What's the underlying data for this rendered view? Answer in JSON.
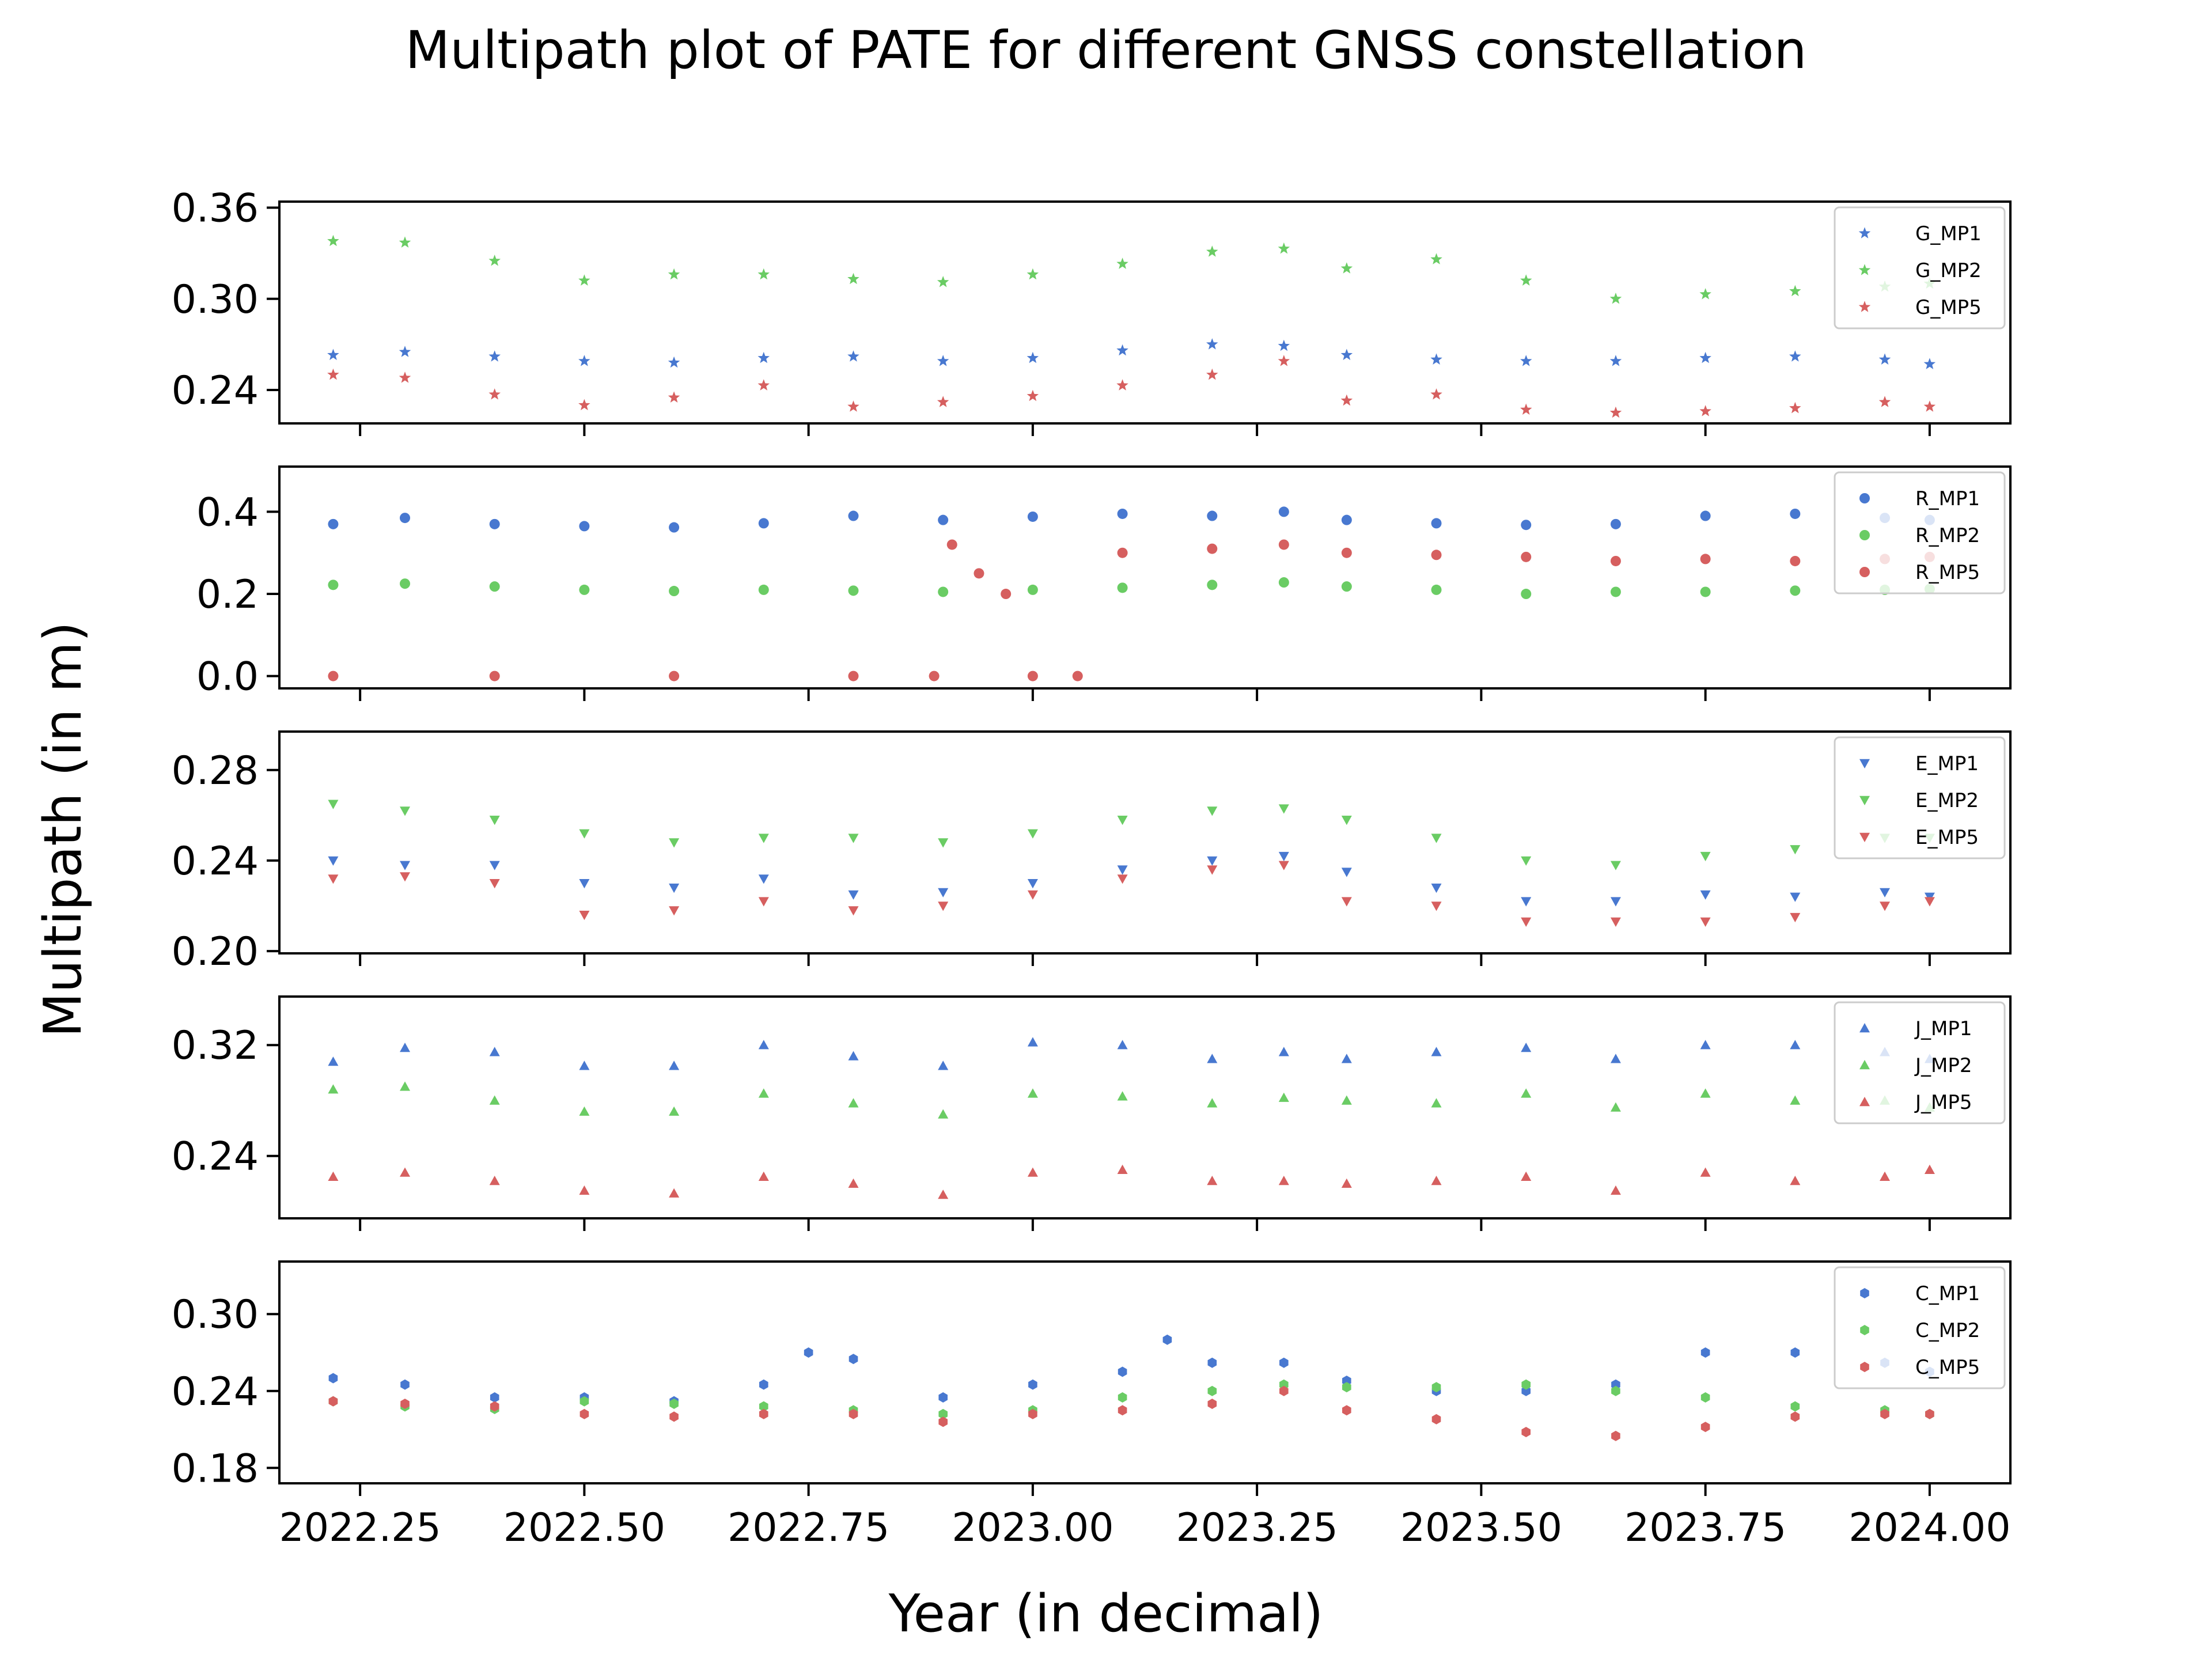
{
  "chart_data": {
    "type": "scatter",
    "title": "Multipath plot of PATE for different GNSS constellation",
    "xlabel": "Year (in decimal)",
    "ylabel": "Multipath (in m)",
    "xlim": [
      2022.16,
      2024.09
    ],
    "x_ticks": [
      2022.25,
      2022.5,
      2022.75,
      2023.0,
      2023.25,
      2023.5,
      2023.75,
      2024.0
    ],
    "x_tick_labels": [
      "2022.25",
      "2022.50",
      "2022.75",
      "2023.00",
      "2023.25",
      "2023.50",
      "2023.75",
      "2024.00"
    ],
    "legend_position": "top-right",
    "series_colors": [
      "#4878d0",
      "#6acc64",
      "#d65f5f"
    ],
    "panels": [
      {
        "constellation": "G",
        "marker": "star",
        "ylim": [
          0.218,
          0.364
        ],
        "y_ticks": [
          0.24,
          0.3,
          0.36
        ],
        "y_tick_labels": [
          "0.24",
          "0.30",
          "0.36"
        ],
        "series": [
          {
            "name": "G_MP1",
            "color": "#4878d0",
            "x": [
              2022.22,
              2022.3,
              2022.4,
              2022.5,
              2022.6,
              2022.7,
              2022.8,
              2022.9,
              2023.0,
              2023.1,
              2023.2,
              2023.28,
              2023.35,
              2023.45,
              2023.55,
              2023.65,
              2023.75,
              2023.85,
              2023.95,
              2024.0
            ],
            "y": [
              0.263,
              0.265,
              0.262,
              0.259,
              0.258,
              0.261,
              0.262,
              0.259,
              0.261,
              0.266,
              0.27,
              0.269,
              0.263,
              0.26,
              0.259,
              0.259,
              0.261,
              0.262,
              0.26,
              0.257
            ]
          },
          {
            "name": "G_MP2",
            "color": "#6acc64",
            "x": [
              2022.22,
              2022.3,
              2022.4,
              2022.5,
              2022.6,
              2022.7,
              2022.8,
              2022.9,
              2023.0,
              2023.1,
              2023.2,
              2023.28,
              2023.35,
              2023.45,
              2023.55,
              2023.65,
              2023.75,
              2023.85,
              2023.95,
              2024.0
            ],
            "y": [
              0.338,
              0.337,
              0.325,
              0.312,
              0.316,
              0.316,
              0.313,
              0.311,
              0.316,
              0.323,
              0.331,
              0.333,
              0.32,
              0.326,
              0.312,
              0.3,
              0.303,
              0.305,
              0.308,
              0.31
            ]
          },
          {
            "name": "G_MP5",
            "color": "#d65f5f",
            "x": [
              2022.22,
              2022.3,
              2022.4,
              2022.5,
              2022.6,
              2022.7,
              2022.8,
              2022.9,
              2023.0,
              2023.1,
              2023.2,
              2023.28,
              2023.35,
              2023.45,
              2023.55,
              2023.65,
              2023.75,
              2023.85,
              2023.95,
              2024.0
            ],
            "y": [
              0.25,
              0.248,
              0.237,
              0.23,
              0.235,
              0.243,
              0.229,
              0.232,
              0.236,
              0.243,
              0.25,
              0.259,
              0.233,
              0.237,
              0.227,
              0.225,
              0.226,
              0.228,
              0.232,
              0.229
            ]
          }
        ]
      },
      {
        "constellation": "R",
        "marker": "circle",
        "ylim": [
          -0.03,
          0.51
        ],
        "y_ticks": [
          0.0,
          0.2,
          0.4
        ],
        "y_tick_labels": [
          "0.0",
          "0.2",
          "0.4"
        ],
        "series": [
          {
            "name": "R_MP1",
            "color": "#4878d0",
            "x": [
              2022.22,
              2022.3,
              2022.4,
              2022.5,
              2022.6,
              2022.7,
              2022.8,
              2022.9,
              2023.0,
              2023.1,
              2023.2,
              2023.28,
              2023.35,
              2023.45,
              2023.55,
              2023.65,
              2023.75,
              2023.85,
              2023.95,
              2024.0
            ],
            "y": [
              0.37,
              0.385,
              0.37,
              0.365,
              0.362,
              0.372,
              0.39,
              0.38,
              0.388,
              0.395,
              0.39,
              0.4,
              0.38,
              0.372,
              0.368,
              0.37,
              0.39,
              0.395,
              0.385,
              0.38
            ]
          },
          {
            "name": "R_MP2",
            "color": "#6acc64",
            "x": [
              2022.22,
              2022.3,
              2022.4,
              2022.5,
              2022.6,
              2022.7,
              2022.8,
              2022.9,
              2023.0,
              2023.1,
              2023.2,
              2023.28,
              2023.35,
              2023.45,
              2023.55,
              2023.65,
              2023.75,
              2023.85,
              2023.95,
              2024.0
            ],
            "y": [
              0.222,
              0.225,
              0.218,
              0.21,
              0.207,
              0.21,
              0.208,
              0.205,
              0.21,
              0.215,
              0.222,
              0.228,
              0.218,
              0.21,
              0.2,
              0.205,
              0.205,
              0.208,
              0.21,
              0.212
            ]
          },
          {
            "name": "R_MP5",
            "color": "#d65f5f",
            "x": [
              2022.22,
              2022.4,
              2022.6,
              2022.8,
              2022.89,
              2022.91,
              2022.94,
              2022.97,
              2023.0,
              2023.05,
              2023.1,
              2023.2,
              2023.28,
              2023.35,
              2023.45,
              2023.55,
              2023.65,
              2023.75,
              2023.85,
              2023.95,
              2024.0
            ],
            "y": [
              0.0,
              0.0,
              0.0,
              0.0,
              0.0,
              0.32,
              0.25,
              0.2,
              0.0,
              0.0,
              0.3,
              0.31,
              0.32,
              0.3,
              0.295,
              0.29,
              0.28,
              0.285,
              0.28,
              0.285,
              0.29
            ]
          }
        ]
      },
      {
        "constellation": "E",
        "marker": "triangle-down",
        "ylim": [
          0.199,
          0.297
        ],
        "y_ticks": [
          0.2,
          0.24,
          0.28
        ],
        "y_tick_labels": [
          "0.20",
          "0.24",
          "0.28"
        ],
        "series": [
          {
            "name": "E_MP1",
            "color": "#4878d0",
            "x": [
              2022.22,
              2022.3,
              2022.4,
              2022.5,
              2022.6,
              2022.7,
              2022.8,
              2022.9,
              2023.0,
              2023.1,
              2023.2,
              2023.28,
              2023.35,
              2023.45,
              2023.55,
              2023.65,
              2023.75,
              2023.85,
              2023.95,
              2024.0
            ],
            "y": [
              0.24,
              0.238,
              0.238,
              0.23,
              0.228,
              0.232,
              0.225,
              0.226,
              0.23,
              0.236,
              0.24,
              0.242,
              0.235,
              0.228,
              0.222,
              0.222,
              0.225,
              0.224,
              0.226,
              0.224
            ]
          },
          {
            "name": "E_MP2",
            "color": "#6acc64",
            "x": [
              2022.22,
              2022.3,
              2022.4,
              2022.5,
              2022.6,
              2022.7,
              2022.8,
              2022.9,
              2023.0,
              2023.1,
              2023.2,
              2023.28,
              2023.35,
              2023.45,
              2023.55,
              2023.65,
              2023.75,
              2023.85,
              2023.95,
              2024.0
            ],
            "y": [
              0.265,
              0.262,
              0.258,
              0.252,
              0.248,
              0.25,
              0.25,
              0.248,
              0.252,
              0.258,
              0.262,
              0.263,
              0.258,
              0.25,
              0.24,
              0.238,
              0.242,
              0.245,
              0.25,
              0.25
            ]
          },
          {
            "name": "E_MP5",
            "color": "#d65f5f",
            "x": [
              2022.22,
              2022.3,
              2022.4,
              2022.5,
              2022.6,
              2022.7,
              2022.8,
              2022.9,
              2023.0,
              2023.1,
              2023.2,
              2023.28,
              2023.35,
              2023.45,
              2023.55,
              2023.65,
              2023.75,
              2023.85,
              2023.95,
              2024.0
            ],
            "y": [
              0.232,
              0.233,
              0.23,
              0.216,
              0.218,
              0.222,
              0.218,
              0.22,
              0.225,
              0.232,
              0.236,
              0.238,
              0.222,
              0.22,
              0.213,
              0.213,
              0.213,
              0.215,
              0.22,
              0.222
            ]
          }
        ]
      },
      {
        "constellation": "J",
        "marker": "triangle-up",
        "ylim": [
          0.195,
          0.355
        ],
        "y_ticks": [
          0.24,
          0.32
        ],
        "y_tick_labels": [
          "0.24",
          "0.32"
        ],
        "series": [
          {
            "name": "J_MP1",
            "color": "#4878d0",
            "x": [
              2022.22,
              2022.3,
              2022.4,
              2022.5,
              2022.6,
              2022.7,
              2022.8,
              2022.9,
              2023.0,
              2023.1,
              2023.2,
              2023.28,
              2023.35,
              2023.45,
              2023.55,
              2023.65,
              2023.75,
              2023.85,
              2023.95,
              2024.0
            ],
            "y": [
              0.308,
              0.318,
              0.315,
              0.305,
              0.305,
              0.32,
              0.312,
              0.305,
              0.322,
              0.32,
              0.31,
              0.315,
              0.31,
              0.315,
              0.318,
              0.31,
              0.32,
              0.32,
              0.315,
              0.31
            ]
          },
          {
            "name": "J_MP2",
            "color": "#6acc64",
            "x": [
              2022.22,
              2022.3,
              2022.4,
              2022.5,
              2022.6,
              2022.7,
              2022.8,
              2022.9,
              2023.0,
              2023.1,
              2023.2,
              2023.28,
              2023.35,
              2023.45,
              2023.55,
              2023.65,
              2023.75,
              2023.85,
              2023.95,
              2024.0
            ],
            "y": [
              0.288,
              0.29,
              0.28,
              0.272,
              0.272,
              0.285,
              0.278,
              0.27,
              0.285,
              0.283,
              0.278,
              0.282,
              0.28,
              0.278,
              0.285,
              0.275,
              0.285,
              0.28,
              0.28,
              0.275
            ]
          },
          {
            "name": "J_MP5",
            "color": "#d65f5f",
            "x": [
              2022.22,
              2022.3,
              2022.4,
              2022.5,
              2022.6,
              2022.7,
              2022.8,
              2022.9,
              2023.0,
              2023.1,
              2023.2,
              2023.28,
              2023.35,
              2023.45,
              2023.55,
              2023.65,
              2023.75,
              2023.85,
              2023.95,
              2024.0
            ],
            "y": [
              0.225,
              0.228,
              0.222,
              0.215,
              0.213,
              0.225,
              0.22,
              0.212,
              0.228,
              0.23,
              0.222,
              0.222,
              0.22,
              0.222,
              0.225,
              0.215,
              0.228,
              0.222,
              0.225,
              0.23
            ]
          }
        ]
      },
      {
        "constellation": "C",
        "marker": "hexagon",
        "ylim": [
          0.168,
          0.341
        ],
        "y_ticks": [
          0.18,
          0.24,
          0.3
        ],
        "y_tick_labels": [
          "0.18",
          "0.24",
          "0.30"
        ],
        "series": [
          {
            "name": "C_MP1",
            "color": "#4878d0",
            "x": [
              2022.22,
              2022.3,
              2022.4,
              2022.5,
              2022.6,
              2022.7,
              2022.75,
              2022.8,
              2022.9,
              2023.0,
              2023.1,
              2023.15,
              2023.2,
              2023.28,
              2023.35,
              2023.45,
              2023.55,
              2023.65,
              2023.75,
              2023.85,
              2023.95,
              2024.0
            ],
            "y": [
              0.25,
              0.245,
              0.235,
              0.235,
              0.232,
              0.245,
              0.27,
              0.265,
              0.235,
              0.245,
              0.255,
              0.28,
              0.262,
              0.262,
              0.248,
              0.24,
              0.24,
              0.245,
              0.27,
              0.27,
              0.262,
              0.255
            ]
          },
          {
            "name": "C_MP2",
            "color": "#6acc64",
            "x": [
              2022.22,
              2022.3,
              2022.4,
              2022.5,
              2022.6,
              2022.7,
              2022.8,
              2022.9,
              2023.0,
              2023.1,
              2023.2,
              2023.28,
              2023.35,
              2023.45,
              2023.55,
              2023.65,
              2023.75,
              2023.85,
              2023.95,
              2024.0
            ],
            "y": [
              0.232,
              0.228,
              0.226,
              0.232,
              0.23,
              0.228,
              0.225,
              0.222,
              0.225,
              0.235,
              0.24,
              0.245,
              0.243,
              0.243,
              0.245,
              0.24,
              0.235,
              0.228,
              0.225,
              0.222
            ]
          },
          {
            "name": "C_MP5",
            "color": "#d65f5f",
            "x": [
              2022.22,
              2022.3,
              2022.4,
              2022.5,
              2022.6,
              2022.7,
              2022.8,
              2022.9,
              2023.0,
              2023.1,
              2023.2,
              2023.28,
              2023.35,
              2023.45,
              2023.55,
              2023.65,
              2023.75,
              2023.85,
              2023.95,
              2024.0
            ],
            "y": [
              0.232,
              0.23,
              0.228,
              0.222,
              0.22,
              0.222,
              0.222,
              0.216,
              0.222,
              0.225,
              0.23,
              0.24,
              0.225,
              0.218,
              0.208,
              0.205,
              0.212,
              0.22,
              0.222,
              0.222
            ]
          }
        ]
      }
    ]
  }
}
